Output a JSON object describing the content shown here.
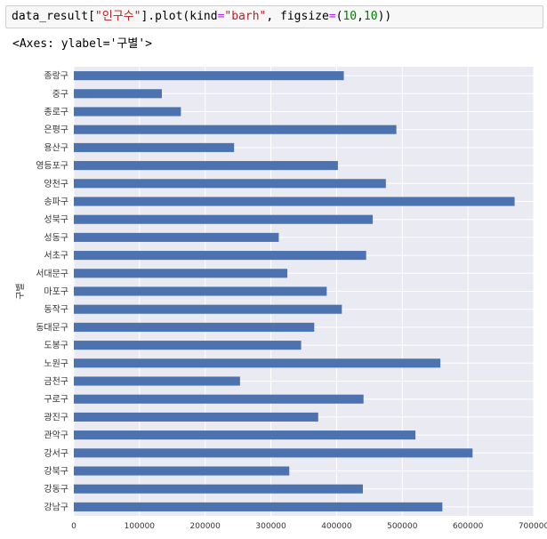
{
  "cell": {
    "code_prefix": "data_result[",
    "code_key": "\"인구수\"",
    "code_mid": "].plot(kind",
    "code_eq": "=",
    "code_kind": "\"barh\"",
    "code_figsize": ", figsize",
    "code_eq2": "=",
    "code_open": "(",
    "code_n1": "10",
    "code_comma": ",",
    "code_n2": "10",
    "code_close": "))"
  },
  "output": {
    "text": "<Axes: ylabel='구별'>"
  },
  "colors": {
    "bar": "#4c72b0",
    "plot_bg": "#eaeaf2",
    "grid": "#ffffff"
  },
  "chart_data": {
    "type": "bar",
    "orientation": "horizontal",
    "title": "",
    "xlabel": "",
    "ylabel": "구별",
    "xlim": [
      0,
      700000
    ],
    "x_ticks": [
      0,
      100000,
      200000,
      300000,
      400000,
      500000,
      600000,
      700000
    ],
    "x_tick_labels": [
      "0",
      "100000",
      "200000",
      "300000",
      "400000",
      "500000",
      "600000",
      "700000"
    ],
    "grid": true,
    "categories": [
      "종랑구",
      "중구",
      "종로구",
      "은평구",
      "용산구",
      "영등포구",
      "양천구",
      "송파구",
      "성북구",
      "성동구",
      "서초구",
      "서대문구",
      "마포구",
      "동작구",
      "동대문구",
      "도봉구",
      "노원구",
      "금천구",
      "구로구",
      "광진구",
      "관악구",
      "강서구",
      "강북구",
      "강동구",
      "강남구"
    ],
    "values": [
      411000,
      134000,
      163000,
      491000,
      244000,
      402000,
      475000,
      671000,
      455000,
      312000,
      445000,
      325000,
      385000,
      408000,
      366000,
      346000,
      558000,
      253000,
      441000,
      372000,
      520000,
      607000,
      328000,
      440000,
      561000
    ]
  }
}
